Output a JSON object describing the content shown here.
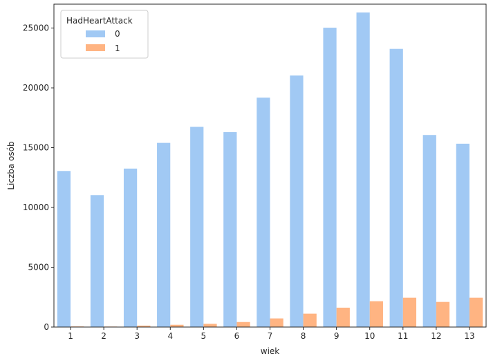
{
  "chart_data": {
    "type": "bar",
    "title": "",
    "xlabel": "wiek",
    "ylabel": "Liczba osób",
    "categories": [
      "1",
      "2",
      "3",
      "4",
      "5",
      "6",
      "7",
      "8",
      "9",
      "10",
      "11",
      "12",
      "13"
    ],
    "ylim": [
      0,
      27000
    ],
    "yticks": [
      "0",
      "5000",
      "10000",
      "15000",
      "20000",
      "25000"
    ],
    "ytick_values": [
      0,
      5000,
      10000,
      15000,
      20000,
      25000
    ],
    "legend": {
      "title": "HadHeartAttack",
      "placement": "top-left"
    },
    "grid": false,
    "series": [
      {
        "name": "0",
        "color": "#a1c9f4",
        "values": [
          13050,
          11030,
          13250,
          15400,
          16740,
          16300,
          19180,
          21030,
          25030,
          26300,
          23260,
          16060,
          15330
        ]
      },
      {
        "name": "1",
        "color": "#ffb482",
        "values": [
          50,
          40,
          120,
          190,
          270,
          420,
          720,
          1120,
          1620,
          2160,
          2450,
          2100,
          2450
        ]
      }
    ]
  }
}
